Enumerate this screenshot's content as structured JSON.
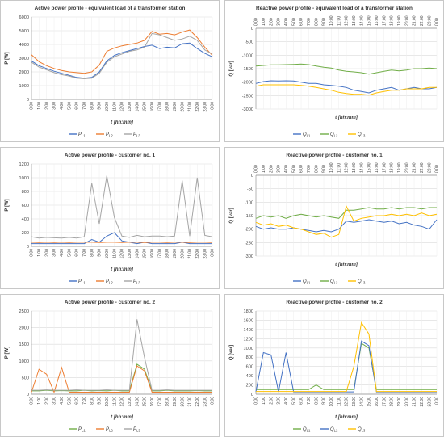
{
  "chart_data": [
    {
      "type": "line",
      "title": "Active power profile - equivalent load of a transformer station",
      "xlabel": "t [hh:mm]",
      "ylabel": "P [W]",
      "ylim": [
        0,
        6000
      ],
      "yticks": [
        0,
        1000,
        2000,
        3000,
        4000,
        5000,
        6000
      ],
      "x_ticks": [
        "0:00",
        "1:00",
        "2:00",
        "3:00",
        "4:00",
        "5:00",
        "6:00",
        "7:00",
        "8:00",
        "9:00",
        "10:00",
        "11:00",
        "12:00",
        "13:00",
        "14:00",
        "15:00",
        "16:00",
        "17:00",
        "18:00",
        "19:00",
        "20:00",
        "21:00",
        "22:00",
        "23:00",
        "0:00"
      ],
      "x_axis_at_top": false,
      "grid": true,
      "legend_position": "bottom",
      "series": [
        {
          "name": "P",
          "sub": "L1",
          "color": "#4472c4",
          "values": [
            2800,
            2450,
            2250,
            2050,
            1900,
            1750,
            1600,
            1550,
            1600,
            2000,
            2800,
            3200,
            3400,
            3550,
            3700,
            3850,
            3950,
            3700,
            3800,
            3750,
            4050,
            4100,
            3700,
            3350,
            3100
          ]
        },
        {
          "name": "P",
          "sub": "L2",
          "color": "#ed7d31",
          "values": [
            3250,
            2750,
            2450,
            2250,
            2100,
            2000,
            1950,
            1900,
            2000,
            2500,
            3500,
            3750,
            3900,
            4000,
            4100,
            4300,
            4950,
            4750,
            4800,
            4700,
            4900,
            5050,
            4500,
            3800,
            3200
          ]
        },
        {
          "name": "P",
          "sub": "L3",
          "color": "#a5a5a5",
          "values": [
            2700,
            2350,
            2150,
            1950,
            1800,
            1700,
            1550,
            1500,
            1550,
            1900,
            2700,
            3100,
            3300,
            3500,
            3600,
            3800,
            4800,
            4700,
            4500,
            4300,
            4400,
            4600,
            4300,
            3600,
            3300
          ]
        }
      ]
    },
    {
      "type": "line",
      "title": "Reactive power profile - equivalent load of a transformer station",
      "xlabel": "t [hh:mm]",
      "ylabel": "Q [var]",
      "ylim": [
        -3000,
        0
      ],
      "yticks": [
        -3000,
        -2500,
        -2000,
        -1500,
        -1000,
        -500,
        0
      ],
      "x_ticks": [
        "0:00",
        "1:00",
        "2:00",
        "3:00",
        "4:00",
        "5:00",
        "6:00",
        "7:00",
        "8:00",
        "9:00",
        "10:00",
        "11:00",
        "12:00",
        "13:00",
        "14:00",
        "15:00",
        "16:00",
        "17:00",
        "18:00",
        "19:00",
        "20:00",
        "21:00",
        "22:00",
        "23:00",
        "0:00"
      ],
      "x_axis_at_top": true,
      "grid": true,
      "legend_position": "bottom",
      "series": [
        {
          "name": "Q",
          "sub": "L1",
          "color": "#4472c4",
          "values": [
            -2050,
            -1980,
            -1950,
            -1960,
            -1950,
            -1960,
            -2000,
            -2050,
            -2050,
            -2100,
            -2120,
            -2150,
            -2200,
            -2300,
            -2350,
            -2400,
            -2300,
            -2250,
            -2200,
            -2300,
            -2250,
            -2200,
            -2250,
            -2250,
            -2200
          ]
        },
        {
          "name": "Q",
          "sub": "L2",
          "color": "#70ad47",
          "values": [
            -1400,
            -1380,
            -1360,
            -1360,
            -1350,
            -1340,
            -1330,
            -1350,
            -1400,
            -1450,
            -1480,
            -1550,
            -1600,
            -1620,
            -1650,
            -1700,
            -1650,
            -1600,
            -1550,
            -1580,
            -1550,
            -1500,
            -1500,
            -1480,
            -1500
          ]
        },
        {
          "name": "Q",
          "sub": "L3",
          "color": "#ffc000",
          "values": [
            -2150,
            -2100,
            -2100,
            -2100,
            -2100,
            -2100,
            -2120,
            -2150,
            -2200,
            -2250,
            -2300,
            -2380,
            -2420,
            -2450,
            -2450,
            -2480,
            -2400,
            -2350,
            -2300,
            -2300,
            -2250,
            -2250,
            -2250,
            -2200,
            -2200
          ]
        }
      ]
    },
    {
      "type": "line",
      "title": "Active power profile - customer no. 1",
      "xlabel": "t [hh:mm]",
      "ylabel": "P [W]",
      "ylim": [
        0,
        1200
      ],
      "yticks": [
        0,
        200,
        400,
        600,
        800,
        1000,
        1200
      ],
      "x_ticks": [
        "0:00",
        "1:00",
        "2:00",
        "3:00",
        "4:00",
        "5:00",
        "6:00",
        "7:00",
        "8:00",
        "9:00",
        "10:00",
        "11:00",
        "12:00",
        "13:00",
        "14:00",
        "15:00",
        "16:00",
        "17:00",
        "18:00",
        "19:00",
        "20:00",
        "21:00",
        "22:00",
        "23:00",
        "0:00"
      ],
      "x_axis_at_top": false,
      "grid": true,
      "legend_position": "bottom",
      "series": [
        {
          "name": "P",
          "sub": "L1",
          "color": "#4472c4",
          "values": [
            40,
            40,
            40,
            40,
            40,
            40,
            40,
            40,
            100,
            60,
            150,
            200,
            80,
            60,
            40,
            60,
            40,
            40,
            40,
            40,
            60,
            40,
            40,
            40,
            40
          ]
        },
        {
          "name": "P",
          "sub": "L2",
          "color": "#ed7d31",
          "values": [
            60,
            55,
            60,
            55,
            60,
            55,
            60,
            60,
            60,
            55,
            60,
            60,
            55,
            60,
            60,
            55,
            60,
            60,
            55,
            60,
            60,
            55,
            60,
            60,
            55
          ]
        },
        {
          "name": "P",
          "sub": "L3",
          "color": "#a5a5a5",
          "values": [
            140,
            120,
            130,
            125,
            120,
            130,
            120,
            140,
            920,
            330,
            1030,
            420,
            150,
            130,
            160,
            140,
            150,
            150,
            140,
            150,
            960,
            150,
            1000,
            160,
            140
          ]
        }
      ]
    },
    {
      "type": "line",
      "title": "Reactive power profile - customer no. 1",
      "xlabel": "t [hh:mm]",
      "ylabel": "Q [var]",
      "ylim": [
        -300,
        0
      ],
      "yticks": [
        -300,
        -250,
        -200,
        -150,
        -100,
        -50,
        0
      ],
      "x_ticks": [
        "0:00",
        "1:00",
        "2:00",
        "3:00",
        "4:00",
        "5:00",
        "6:00",
        "7:00",
        "8:00",
        "9:00",
        "10:00",
        "11:00",
        "12:00",
        "13:00",
        "14:00",
        "15:00",
        "16:00",
        "17:00",
        "18:00",
        "19:00",
        "20:00",
        "21:00",
        "22:00",
        "23:00",
        "0:00"
      ],
      "x_axis_at_top": true,
      "grid": true,
      "legend_position": "bottom",
      "series": [
        {
          "name": "Q",
          "sub": "L1",
          "color": "#4472c4",
          "values": [
            -190,
            -200,
            -195,
            -200,
            -200,
            -195,
            -200,
            -205,
            -210,
            -205,
            -210,
            -200,
            -170,
            -175,
            -170,
            -165,
            -170,
            -175,
            -170,
            -180,
            -175,
            -185,
            -190,
            -200,
            -165
          ]
        },
        {
          "name": "Q",
          "sub": "L2",
          "color": "#70ad47",
          "values": [
            -160,
            -150,
            -155,
            -150,
            -160,
            -150,
            -145,
            -150,
            -155,
            -150,
            -155,
            -160,
            -130,
            -130,
            -125,
            -120,
            -125,
            -125,
            -120,
            -125,
            -120,
            -120,
            -125,
            -120,
            -120
          ]
        },
        {
          "name": "Q",
          "sub": "L3",
          "color": "#ffc000",
          "values": [
            -175,
            -185,
            -180,
            -190,
            -185,
            -195,
            -200,
            -210,
            -220,
            -215,
            -230,
            -220,
            -115,
            -170,
            -160,
            -155,
            -150,
            -150,
            -145,
            -150,
            -145,
            -150,
            -140,
            -150,
            -145
          ]
        }
      ]
    },
    {
      "type": "line",
      "title": "Active power profile - customer no. 2",
      "xlabel": "t [hh:mm]",
      "ylabel": "P [W]",
      "ylim": [
        0,
        2500
      ],
      "yticks": [
        0,
        500,
        1000,
        1500,
        2000,
        2500
      ],
      "x_ticks": [
        "0:00",
        "1:00",
        "2:00",
        "3:00",
        "4:00",
        "5:00",
        "6:00",
        "7:00",
        "8:00",
        "9:00",
        "10:00",
        "11:00",
        "12:00",
        "13:00",
        "14:00",
        "15:00",
        "16:00",
        "17:00",
        "18:00",
        "19:00",
        "20:00",
        "21:00",
        "22:00",
        "23:00",
        "0:00"
      ],
      "x_axis_at_top": false,
      "grid": true,
      "legend_position": "bottom",
      "series": [
        {
          "name": "P",
          "sub": "L1",
          "color": "#70ad47",
          "values": [
            100,
            100,
            120,
            100,
            110,
            100,
            100,
            120,
            100,
            110,
            100,
            120,
            100,
            100,
            900,
            750,
            100,
            100,
            120,
            100,
            100,
            100,
            110,
            100,
            100
          ]
        },
        {
          "name": "P",
          "sub": "L2",
          "color": "#ed7d31",
          "values": [
            60,
            750,
            600,
            60,
            800,
            60,
            60,
            60,
            60,
            60,
            60,
            60,
            60,
            60,
            850,
            700,
            60,
            60,
            60,
            60,
            60,
            60,
            60,
            60,
            60
          ]
        },
        {
          "name": "P",
          "sub": "L3",
          "color": "#a5a5a5",
          "values": [
            120,
            120,
            130,
            120,
            120,
            120,
            130,
            120,
            120,
            120,
            130,
            120,
            120,
            120,
            2250,
            1100,
            120,
            120,
            130,
            120,
            120,
            120,
            120,
            120,
            120
          ]
        }
      ]
    },
    {
      "type": "line",
      "title": "Reactive power profile - customer no. 2",
      "xlabel": "t [hh:mm]",
      "ylabel": "Q [var]",
      "ylim": [
        0,
        1800
      ],
      "yticks": [
        0,
        200,
        400,
        600,
        800,
        1000,
        1200,
        1400,
        1600,
        1800
      ],
      "x_ticks": [
        "0:00",
        "1:00",
        "2:00",
        "3:00",
        "4:00",
        "5:00",
        "6:00",
        "7:00",
        "8:00",
        "9:00",
        "10:00",
        "11:00",
        "12:00",
        "13:00",
        "14:00",
        "15:00",
        "16:00",
        "17:00",
        "18:00",
        "19:00",
        "20:00",
        "21:00",
        "22:00",
        "23:00",
        "0:00"
      ],
      "x_axis_at_top": false,
      "grid": true,
      "legend_position": "bottom",
      "series": [
        {
          "name": "Q",
          "sub": "L1",
          "color": "#70ad47",
          "values": [
            100,
            100,
            100,
            100,
            100,
            100,
            100,
            100,
            200,
            100,
            100,
            100,
            100,
            100,
            1100,
            1000,
            100,
            100,
            100,
            100,
            100,
            100,
            100,
            100,
            100
          ]
        },
        {
          "name": "Q",
          "sub": "L2",
          "color": "#4472c4",
          "values": [
            50,
            900,
            850,
            50,
            900,
            50,
            50,
            50,
            50,
            50,
            50,
            50,
            50,
            50,
            1150,
            1050,
            50,
            50,
            50,
            50,
            50,
            50,
            50,
            50,
            50
          ]
        },
        {
          "name": "Q",
          "sub": "L3",
          "color": "#ffc000",
          "values": [
            60,
            60,
            60,
            60,
            60,
            60,
            60,
            60,
            60,
            60,
            60,
            60,
            60,
            600,
            1550,
            1300,
            60,
            60,
            60,
            60,
            60,
            60,
            60,
            60,
            60
          ]
        }
      ]
    }
  ]
}
